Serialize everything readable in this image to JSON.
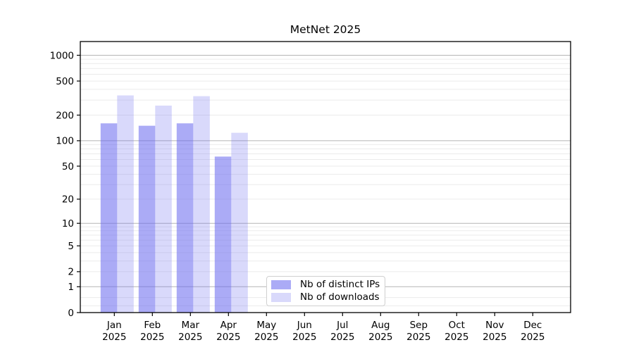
{
  "chart_data": {
    "type": "bar",
    "title": "MetNet 2025",
    "x": {
      "months": [
        "Jan",
        "Feb",
        "Mar",
        "Apr",
        "May",
        "Jun",
        "Jul",
        "Aug",
        "Sep",
        "Oct",
        "Nov",
        "Dec"
      ],
      "year": "2025"
    },
    "series": [
      {
        "name": "Nb of distinct IPs",
        "color": "rgba(102,102,238,0.55)",
        "values": [
          160,
          150,
          160,
          65,
          null,
          null,
          null,
          null,
          null,
          null,
          null,
          null
        ]
      },
      {
        "name": "Nb of downloads",
        "color": "rgba(102,102,238,0.25)",
        "values": [
          340,
          258,
          333,
          124,
          null,
          null,
          null,
          null,
          null,
          null,
          null,
          null
        ]
      }
    ],
    "y_axis": {
      "scale": "log1p",
      "tick_values": [
        0,
        1,
        2,
        5,
        10,
        20,
        50,
        100,
        200,
        500,
        1000
      ],
      "tick_labels": [
        "0",
        "1",
        "2",
        "5",
        "10",
        "20",
        "50",
        "100",
        "200",
        "500",
        "1000"
      ],
      "major_gridlines": [
        1,
        10,
        100,
        1000
      ],
      "minor_gridlines": [
        0.2,
        0.5,
        2,
        3,
        4,
        5,
        6,
        7,
        8,
        9,
        20,
        30,
        40,
        50,
        60,
        70,
        80,
        90,
        200,
        300,
        400,
        500,
        600,
        700,
        800,
        900
      ],
      "ylim": [
        0,
        1430
      ]
    },
    "legend": {
      "position": "bottom-center",
      "items": [
        "Nb of distinct IPs",
        "Nb of downloads"
      ]
    },
    "grid": true
  },
  "colors": {
    "spine": "#000000",
    "major_gridline": "#b5b5b5",
    "minor_gridline": "#ebebeb",
    "bar_base": "#6666ee",
    "legend_border": "#d0d0d0",
    "text": "#000000"
  }
}
